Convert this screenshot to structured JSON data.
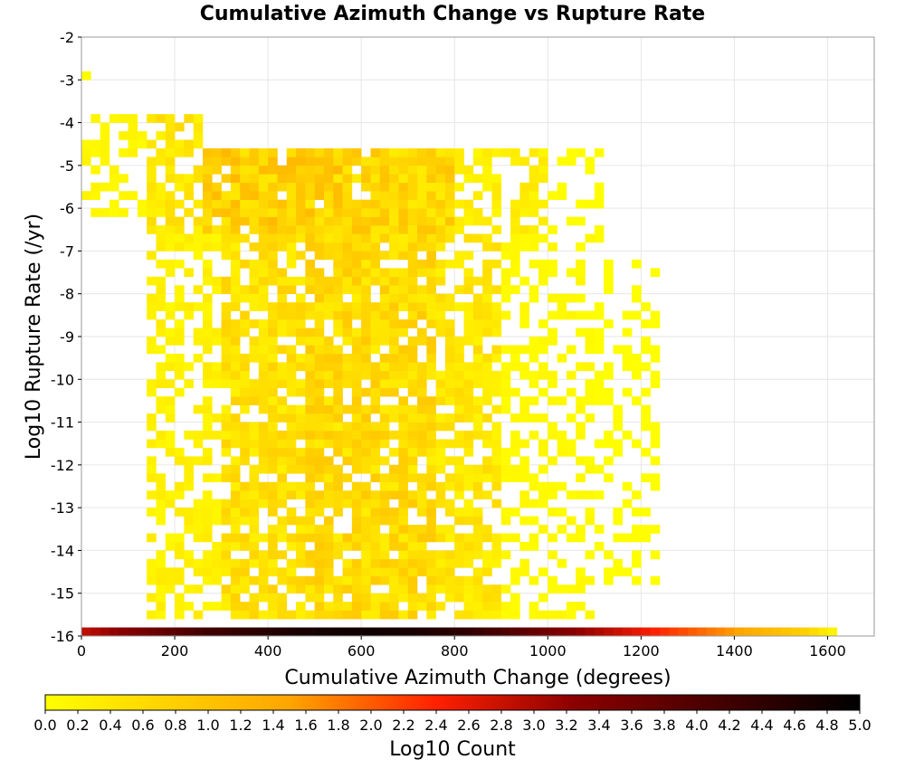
{
  "chart_data": {
    "type": "heatmap",
    "title": "Cumulative Azimuth Change vs Rupture Rate",
    "xlabel": "Cumulative Azimuth Change (degrees)",
    "ylabel": "Log10 Rupture Rate (/yr)",
    "xlim": [
      0,
      1700
    ],
    "ylim": [
      -16,
      -2
    ],
    "x_ticks": [
      0,
      200,
      400,
      600,
      800,
      1000,
      1200,
      1400,
      1600
    ],
    "x_tick_labels": [
      "0",
      "200",
      "400",
      "600",
      "800",
      "1000",
      "1200",
      "1400",
      "1600"
    ],
    "y_ticks": [
      -2,
      -3,
      -4,
      -5,
      -6,
      -7,
      -8,
      -9,
      -10,
      -11,
      -12,
      -13,
      -14,
      -15,
      -16
    ],
    "y_tick_labels": [
      "-2",
      "-3",
      "-4",
      "-5",
      "-6",
      "-7",
      "-8",
      "-9",
      "-10",
      "-11",
      "-12",
      "-13",
      "-14",
      "-15",
      "-16"
    ],
    "bin_width": 20,
    "bin_height": 0.2,
    "grid": true,
    "colorbar": {
      "title": "Log10 Count",
      "range": [
        0,
        5
      ],
      "ticks": [
        "0.0",
        "0.2",
        "0.4",
        "0.6",
        "0.8",
        "1.0",
        "1.2",
        "1.4",
        "1.6",
        "1.8",
        "2.0",
        "2.2",
        "2.4",
        "2.6",
        "2.8",
        "3.0",
        "3.2",
        "3.4",
        "3.6",
        "3.8",
        "4.0",
        "4.2",
        "4.4",
        "4.6",
        "4.8",
        "5.0"
      ],
      "colors": [
        "#ffff00",
        "#ffa500",
        "#ff2000",
        "#8b0000",
        "#000000"
      ]
    },
    "regions": [
      {
        "x": [
          0,
          20
        ],
        "y": [
          -3.2,
          -2.6
        ],
        "value": 0.05
      },
      {
        "x": [
          0,
          140
        ],
        "y": [
          -6.2,
          -3.8
        ],
        "value": 0.15
      },
      {
        "x": [
          140,
          260
        ],
        "y": [
          -6.6,
          -3.8
        ],
        "value": 0.45
      },
      {
        "x": [
          260,
          560
        ],
        "y": [
          -6.6,
          -4.6
        ],
        "value": 0.85
      },
      {
        "x": [
          560,
          800
        ],
        "y": [
          -6.8,
          -4.6
        ],
        "value": 0.75
      },
      {
        "x": [
          800,
          1000
        ],
        "y": [
          -6.6,
          -4.6
        ],
        "value": 0.3
      },
      {
        "x": [
          1000,
          1120
        ],
        "y": [
          -6.8,
          -4.6
        ],
        "value": 0.05
      },
      {
        "x": [
          140,
          300
        ],
        "y": [
          -15.6,
          -6.6
        ],
        "value": 0.25
      },
      {
        "x": [
          300,
          480
        ],
        "y": [
          -15.6,
          -6.6
        ],
        "value": 0.55
      },
      {
        "x": [
          480,
          760
        ],
        "y": [
          -15.6,
          -6.6
        ],
        "value": 0.65
      },
      {
        "x": [
          760,
          900
        ],
        "y": [
          -15.6,
          -6.6
        ],
        "value": 0.45
      },
      {
        "x": [
          900,
          1100
        ],
        "y": [
          -15.6,
          -6.6
        ],
        "value": 0.1
      },
      {
        "x": [
          1100,
          1240
        ],
        "y": [
          -14.8,
          -7.2
        ],
        "value": 0.02
      }
    ],
    "bottom_row": {
      "y": -16,
      "x_bins": [
        0,
        20,
        40,
        60,
        80,
        100,
        120,
        140,
        160,
        180,
        200,
        220,
        240,
        260,
        280,
        300,
        320,
        340,
        360,
        380,
        400,
        420,
        440,
        460,
        480,
        500,
        520,
        540,
        560,
        580,
        600,
        620,
        640,
        660,
        680,
        700,
        720,
        740,
        760,
        780,
        800,
        820,
        840,
        860,
        880,
        900,
        920,
        940,
        960,
        980,
        1000,
        1020,
        1040,
        1060,
        1080,
        1100,
        1120,
        1140,
        1160,
        1180,
        1200,
        1220,
        1240,
        1260,
        1280,
        1300,
        1320,
        1340,
        1360,
        1380,
        1400,
        1420,
        1440,
        1460,
        1480,
        1500,
        1520,
        1540,
        1560,
        1580,
        1600
      ],
      "values": [
        2.9,
        3.0,
        3.1,
        3.2,
        3.3,
        3.4,
        3.5,
        3.6,
        3.7,
        3.8,
        3.9,
        4.0,
        4.1,
        4.2,
        4.25,
        4.3,
        4.35,
        4.4,
        4.45,
        4.5,
        4.55,
        4.6,
        4.65,
        4.7,
        4.7,
        4.75,
        4.75,
        4.8,
        4.8,
        4.8,
        4.8,
        4.8,
        4.75,
        4.75,
        4.7,
        4.7,
        4.65,
        4.6,
        4.55,
        4.5,
        4.45,
        4.4,
        4.3,
        4.2,
        4.1,
        4.0,
        3.9,
        3.8,
        3.7,
        3.6,
        3.5,
        3.4,
        3.3,
        3.2,
        3.1,
        3.0,
        2.9,
        2.8,
        2.7,
        2.6,
        2.5,
        2.4,
        2.3,
        2.2,
        2.1,
        2.0,
        1.9,
        1.8,
        1.7,
        1.6,
        1.5,
        1.4,
        1.3,
        1.2,
        1.1,
        1.0,
        0.9,
        0.8,
        0.6,
        0.4,
        0.2
      ]
    }
  }
}
